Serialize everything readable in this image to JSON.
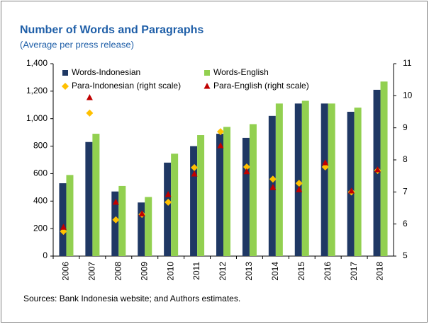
{
  "chart_data": {
    "type": "bar",
    "title": "Number of Words and Paragraphs",
    "subtitle": "(Average per press release)",
    "source": "Sources: Bank Indonesia website; and Authors estimates.",
    "categories": [
      "2006",
      "2007",
      "2008",
      "2009",
      "2010",
      "2011",
      "2012",
      "2013",
      "2014",
      "2015",
      "2016",
      "2017",
      "2018"
    ],
    "series": [
      {
        "name": "Words-Indonesian",
        "type": "bar",
        "color": "#1f3864",
        "values": [
          530,
          830,
          470,
          390,
          680,
          800,
          890,
          860,
          1020,
          1110,
          1110,
          1050,
          1210
        ]
      },
      {
        "name": "Words-English",
        "type": "bar",
        "color": "#92d050",
        "values": [
          590,
          890,
          510,
          430,
          745,
          880,
          940,
          960,
          1110,
          1130,
          1110,
          1080,
          1270
        ]
      },
      {
        "name": "Para-Indonesian (right scale)",
        "type": "scatter",
        "marker": "diamond",
        "axis": "y2",
        "color": "#ffc000",
        "values": [
          5.77,
          9.46,
          6.13,
          6.3,
          6.68,
          7.76,
          8.88,
          7.78,
          7.4,
          7.27,
          7.78,
          7.0,
          7.67
        ]
      },
      {
        "name": "Para-English (right scale)",
        "type": "scatter",
        "marker": "triangle",
        "axis": "y2",
        "color": "#c00000",
        "values": [
          5.9,
          9.94,
          6.68,
          6.32,
          6.92,
          7.56,
          8.44,
          7.63,
          7.14,
          7.07,
          7.91,
          7.03,
          7.69
        ]
      }
    ],
    "ylim": [
      0,
      1400
    ],
    "yticks": [
      0,
      200,
      400,
      600,
      800,
      {
        "value": 1000,
        "label": "1,000"
      },
      {
        "value": 1200,
        "label": "1,200"
      },
      {
        "value": 1400,
        "label": "1,400"
      }
    ],
    "y2lim": [
      5,
      11
    ],
    "y2ticks": [
      5,
      6,
      7,
      8,
      9,
      10,
      11
    ],
    "legend": "upper left"
  }
}
